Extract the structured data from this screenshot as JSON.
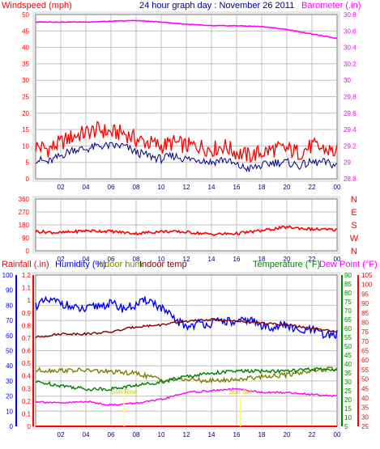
{
  "colors": {
    "windspeed": "#ff0000",
    "windavg": "#000080",
    "barometer": "#ff00ff",
    "direction": "#ff0000",
    "rainfall": "#ff0000",
    "humidity": "#0000ff",
    "indoor_hum": "#808000",
    "indoor_temp": "#800000",
    "temperature": "#008000",
    "dewpoint": "#ff00ff",
    "grid": "#c0c0c0",
    "frame_bg": "#e8e8e8",
    "panel_bg": "#ffffff",
    "sun_marker": "#ffff80"
  },
  "chart_data": [
    {
      "type": "line",
      "title": "24 hour graph day : November 26 2011",
      "x_ticks": [
        "02",
        "04",
        "06",
        "08",
        "10",
        "12",
        "14",
        "16",
        "18",
        "20",
        "22",
        "00"
      ],
      "grid": true,
      "left_axis": {
        "label": "Windspeed (mph)",
        "range": [
          0,
          50
        ],
        "ticks": [
          "0",
          "5",
          "10",
          "15",
          "20",
          "25",
          "30",
          "35",
          "40",
          "45",
          "50"
        ]
      },
      "right_axis": {
        "label": "Barometer (.in)",
        "range": [
          28.7,
          30.9
        ],
        "ticks": [
          "28.8",
          "29",
          "29.2",
          "29.4",
          "29.6",
          "29.8",
          "30",
          "30.2",
          "30.4",
          "30.6",
          "30.8"
        ]
      },
      "series": [
        {
          "name": "Windspeed (mph)",
          "axis": "left",
          "x": [
            0,
            1,
            2,
            3,
            4,
            5,
            6,
            7,
            8,
            9,
            10,
            11,
            12,
            13,
            14,
            15,
            16,
            17,
            18,
            19,
            20,
            21,
            22,
            23,
            24
          ],
          "values": [
            10,
            9,
            11,
            13,
            14,
            15,
            14,
            14,
            12,
            11,
            10,
            11,
            10,
            10,
            9,
            10,
            8,
            7,
            8,
            9,
            9,
            8,
            10,
            9,
            8
          ]
        },
        {
          "name": "Wind average",
          "axis": "left",
          "x": [
            0,
            1,
            2,
            3,
            4,
            5,
            6,
            7,
            8,
            9,
            10,
            11,
            12,
            13,
            14,
            15,
            16,
            17,
            18,
            19,
            20,
            21,
            22,
            23,
            24
          ],
          "values": [
            6,
            5,
            7,
            9,
            9,
            10,
            10,
            10,
            8,
            7,
            6,
            7,
            6,
            6,
            5,
            6,
            4,
            3,
            4,
            5,
            5,
            4,
            5,
            5,
            4
          ]
        },
        {
          "name": "Barometer (.in)",
          "axis": "right",
          "x": [
            0,
            2,
            4,
            6,
            8,
            10,
            12,
            14,
            16,
            18,
            20,
            22,
            24
          ],
          "values": [
            30.8,
            30.8,
            30.8,
            30.81,
            30.82,
            30.8,
            30.77,
            30.75,
            30.75,
            30.74,
            30.7,
            30.64,
            30.58
          ]
        }
      ]
    },
    {
      "type": "line",
      "title": "",
      "left_axis": {
        "label": "",
        "range": [
          0,
          360
        ],
        "ticks": [
          "0",
          "90",
          "180",
          "270",
          "360"
        ]
      },
      "right_axis": {
        "label": "",
        "ticks": [
          "N",
          "W",
          "S",
          "E",
          "N"
        ]
      },
      "x_ticks": [
        "02",
        "04",
        "06",
        "08",
        "10",
        "12",
        "14",
        "16",
        "18",
        "20",
        "22",
        "00"
      ],
      "grid": true,
      "series": [
        {
          "name": "Wind direction",
          "x": [
            0,
            2,
            4,
            6,
            8,
            10,
            12,
            14,
            16,
            18,
            20,
            22,
            24
          ],
          "values": [
            135,
            125,
            140,
            135,
            120,
            135,
            130,
            115,
            120,
            140,
            165,
            150,
            145
          ]
        }
      ]
    },
    {
      "type": "line",
      "title": "",
      "x_ticks": [
        "02",
        "04",
        "06",
        "08",
        "10",
        "12",
        "14",
        "16",
        "18",
        "20",
        "22",
        "00"
      ],
      "grid": true,
      "legend": [
        "Rainfall (.in)",
        "Humidity (%)",
        "Indoor hum",
        "Indoor temp",
        "Temperature (°F)",
        "Dew Point (°F)"
      ],
      "axis_rainfall": {
        "range": [
          0,
          1.2
        ],
        "ticks": [
          "0",
          "0.1",
          "0.2",
          "0.3",
          "0.4",
          "0.5",
          "0.6",
          "0.7",
          "0.8",
          "0.9",
          "1",
          "1.1",
          "1.2"
        ]
      },
      "axis_humidity": {
        "range": [
          0,
          100
        ],
        "ticks": [
          "0",
          "10",
          "20",
          "30",
          "40",
          "50",
          "60",
          "70",
          "80",
          "90",
          "100"
        ]
      },
      "axis_temperature": {
        "range": [
          5,
          90
        ],
        "ticks": [
          "5",
          "10",
          "15",
          "20",
          "25",
          "30",
          "35",
          "40",
          "45",
          "50",
          "55",
          "60",
          "65",
          "70",
          "75",
          "80",
          "85",
          "90"
        ]
      },
      "axis_dewpoint": {
        "range": [
          25,
          105
        ],
        "ticks": [
          "25",
          "30",
          "35",
          "40",
          "45",
          "50",
          "55",
          "60",
          "65",
          "70",
          "75",
          "80",
          "85",
          "90",
          "95",
          "100",
          "105"
        ]
      },
      "annotations": [
        {
          "text": "Sun Rise",
          "x": 7.05
        },
        {
          "text": "Sun Set",
          "x": 16.3
        }
      ],
      "series": [
        {
          "name": "Rainfall (.in)",
          "axis": "rainfall",
          "x": [
            0,
            24
          ],
          "values": [
            0,
            0
          ]
        },
        {
          "name": "Humidity (%)",
          "axis": "humidity",
          "x": [
            0,
            1,
            2,
            3,
            4,
            5,
            6,
            7,
            8,
            9,
            10,
            11,
            12,
            13,
            14,
            15,
            16,
            17,
            18,
            19,
            20,
            21,
            22,
            23,
            24
          ],
          "values": [
            80,
            83,
            82,
            78,
            77,
            80,
            81,
            78,
            80,
            84,
            78,
            71,
            66,
            68,
            68,
            70,
            68,
            71,
            66,
            66,
            67,
            62,
            64,
            60,
            61
          ]
        },
        {
          "name": "Indoor hum",
          "axis": "humidity",
          "x": [
            0,
            2,
            4,
            6,
            8,
            10,
            12,
            14,
            16,
            18,
            20,
            22,
            24
          ],
          "values": [
            37,
            37,
            37,
            36,
            35,
            31,
            31,
            30,
            31,
            33,
            34,
            37,
            38
          ]
        },
        {
          "name": "Indoor temp",
          "axis": "temperature",
          "x": [
            0,
            2,
            4,
            6,
            8,
            10,
            12,
            14,
            16,
            18,
            20,
            22,
            24
          ],
          "values": [
            55,
            57,
            57,
            58,
            61,
            62,
            64,
            65,
            64,
            63,
            62,
            60,
            58
          ]
        },
        {
          "name": "Temperature (°F)",
          "axis": "temperature",
          "x": [
            0,
            2,
            4,
            6,
            8,
            10,
            12,
            14,
            16,
            18,
            20,
            22,
            24
          ],
          "values": [
            30,
            28,
            26,
            26,
            28,
            30,
            33,
            35,
            36,
            36,
            36,
            37,
            37
          ]
        },
        {
          "name": "Dew Point (°F)",
          "axis": "temperature",
          "x": [
            0,
            2,
            4,
            6,
            8,
            10,
            12,
            14,
            16,
            18,
            20,
            22,
            24
          ],
          "values": [
            19,
            18,
            19,
            17,
            18,
            20,
            24,
            25,
            26,
            24,
            24,
            23,
            22
          ]
        }
      ]
    }
  ]
}
